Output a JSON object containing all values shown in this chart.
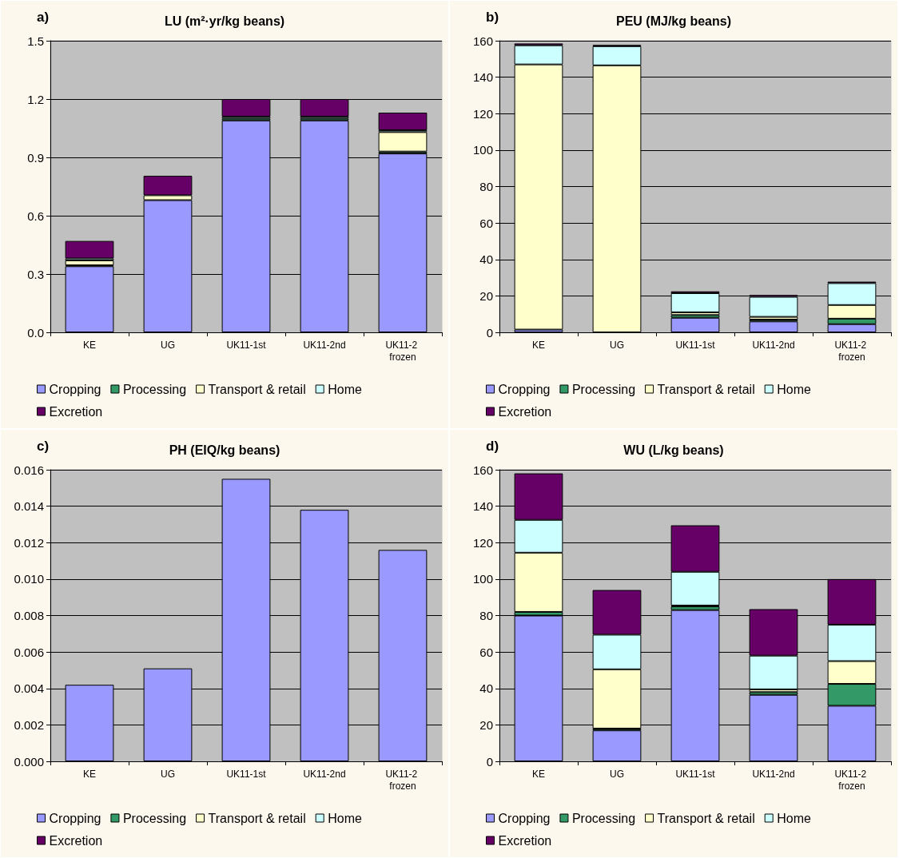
{
  "chart_data": [
    {
      "type": "bar",
      "title": "LU (m²·yr/kg beans)",
      "annotations": [
        "a)"
      ],
      "categories": [
        "KE",
        "UG",
        "UK11-1st",
        "UK11-2nd",
        "UK11-2 frozen"
      ],
      "stacked": true,
      "grid": "y",
      "legend": "bottom",
      "ylim": [
        0,
        1.5
      ],
      "yticks": [
        {
          "value": 0,
          "label": "0.0"
        },
        {
          "value": 0.3,
          "label": "0.3"
        },
        {
          "value": 0.6,
          "label": "0.6"
        },
        {
          "value": 0.9,
          "label": "0.9"
        },
        {
          "value": 1.2,
          "label": "1.2"
        },
        {
          "value": 1.5,
          "label": "1.5"
        }
      ],
      "series": [
        {
          "name": "Cropping",
          "color": "#9999ff",
          "values": [
            0.34,
            0.68,
            1.09,
            1.09,
            0.92
          ]
        },
        {
          "name": "Processing",
          "color": "#339966",
          "values": [
            0.005,
            null,
            0.01,
            0.01,
            0.01
          ]
        },
        {
          "name": "Transport & retail",
          "color": "#ffffcc",
          "values": [
            0.025,
            0.025,
            null,
            null,
            0.1
          ]
        },
        {
          "name": "Home",
          "color": "#ccffff",
          "values": [
            0.01,
            null,
            0.01,
            0.01,
            0.01
          ]
        },
        {
          "name": "Excretion",
          "color": "#660066",
          "values": [
            0.09,
            0.1,
            0.09,
            0.09,
            0.09
          ]
        }
      ]
    },
    {
      "type": "bar",
      "title": "PEU (MJ/kg beans)",
      "annotations": [
        "b)"
      ],
      "categories": [
        "KE",
        "UG",
        "UK11-1st",
        "UK11-2nd",
        "UK11-2 frozen"
      ],
      "stacked": true,
      "grid": "y",
      "legend": "bottom",
      "ylim": [
        0,
        160
      ],
      "yticks": [
        0,
        20,
        40,
        60,
        80,
        100,
        120,
        140,
        160
      ],
      "series": [
        {
          "name": "Cropping",
          "color": "#9999ff",
          "values": [
            1.5,
            0,
            8,
            6,
            4.5
          ]
        },
        {
          "name": "Processing",
          "color": "#339966",
          "values": [
            0,
            0,
            1.5,
            1,
            3
          ]
        },
        {
          "name": "Transport & retail",
          "color": "#ffffcc",
          "values": [
            145.5,
            146.5,
            1.5,
            1.5,
            7.5
          ]
        },
        {
          "name": "Home",
          "color": "#ccffff",
          "values": [
            10.5,
            10.5,
            10.5,
            11,
            12
          ]
        },
        {
          "name": "Excretion",
          "color": "#660066",
          "values": [
            1,
            0.7,
            1,
            1,
            0.8
          ]
        }
      ]
    },
    {
      "type": "bar",
      "title": "PH (EIQ/kg beans)",
      "annotations": [
        "c)"
      ],
      "categories": [
        "KE",
        "UG",
        "UK11-1st",
        "UK11-2nd",
        "UK11-2 frozen"
      ],
      "stacked": true,
      "grid": "y",
      "legend": "bottom",
      "ylim": [
        0,
        0.016
      ],
      "yticks": [
        {
          "value": 0,
          "label": "0.000"
        },
        {
          "value": 0.002,
          "label": "0.002"
        },
        {
          "value": 0.004,
          "label": "0.004"
        },
        {
          "value": 0.006,
          "label": "0.006"
        },
        {
          "value": 0.008,
          "label": "0.008"
        },
        {
          "value": 0.01,
          "label": "0.010"
        },
        {
          "value": 0.012,
          "label": "0.012"
        },
        {
          "value": 0.014,
          "label": "0.014"
        },
        {
          "value": 0.016,
          "label": "0.016"
        }
      ],
      "series": [
        {
          "name": "Cropping",
          "color": "#9999ff",
          "values": [
            0.0042,
            0.0051,
            0.0155,
            0.0138,
            0.0116
          ]
        },
        {
          "name": "Processing",
          "color": "#339966",
          "values": [
            0,
            0,
            0,
            0,
            0
          ]
        },
        {
          "name": "Transport & retail",
          "color": "#ffffcc",
          "values": [
            0,
            0,
            0,
            0,
            0
          ]
        },
        {
          "name": "Home",
          "color": "#ccffff",
          "values": [
            0,
            0,
            0,
            0,
            0
          ]
        },
        {
          "name": "Excretion",
          "color": "#660066",
          "values": [
            0,
            0,
            0,
            0,
            0
          ]
        }
      ]
    },
    {
      "type": "bar",
      "title": "WU (L/kg beans)",
      "annotations": [
        "d)"
      ],
      "categories": [
        "KE",
        "UG",
        "UK11-1st",
        "UK11-2nd",
        "UK11-2 frozen"
      ],
      "stacked": true,
      "grid": "y",
      "legend": "bottom",
      "ylim": [
        0,
        160
      ],
      "yticks": [
        0,
        20,
        40,
        60,
        80,
        100,
        120,
        140,
        160
      ],
      "series": [
        {
          "name": "Cropping",
          "color": "#9999ff",
          "values": [
            80,
            17,
            83,
            36.5,
            30.5
          ]
        },
        {
          "name": "Processing",
          "color": "#339966",
          "values": [
            2,
            1,
            2,
            1.5,
            12
          ]
        },
        {
          "name": "Transport & retail",
          "color": "#ffffcc",
          "values": [
            32.5,
            32.5,
            0.5,
            1.5,
            12.5
          ]
        },
        {
          "name": "Home",
          "color": "#ccffff",
          "values": [
            18,
            19,
            18.5,
            18.5,
            20
          ]
        },
        {
          "name": "Excretion",
          "color": "#660066",
          "values": [
            25.5,
            24.5,
            25.5,
            25.5,
            25
          ]
        }
      ]
    }
  ]
}
